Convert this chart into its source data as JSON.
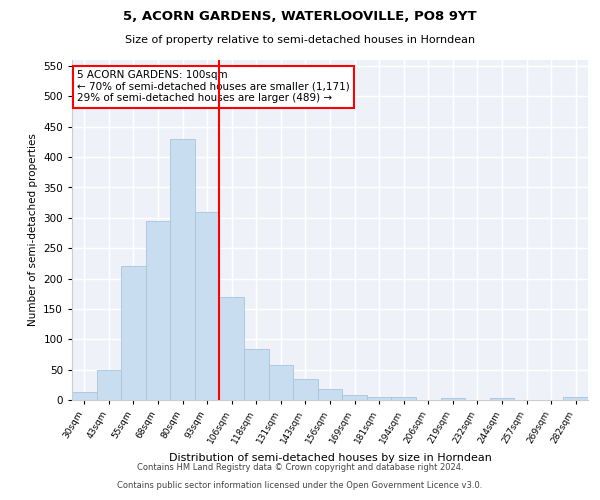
{
  "title1": "5, ACORN GARDENS, WATERLOOVILLE, PO8 9YT",
  "title2": "Size of property relative to semi-detached houses in Horndean",
  "xlabel": "Distribution of semi-detached houses by size in Horndean",
  "ylabel": "Number of semi-detached properties",
  "categories": [
    "30sqm",
    "43sqm",
    "55sqm",
    "68sqm",
    "80sqm",
    "93sqm",
    "106sqm",
    "118sqm",
    "131sqm",
    "143sqm",
    "156sqm",
    "169sqm",
    "181sqm",
    "194sqm",
    "206sqm",
    "219sqm",
    "232sqm",
    "244sqm",
    "257sqm",
    "269sqm",
    "282sqm"
  ],
  "values": [
    13,
    49,
    220,
    295,
    430,
    310,
    170,
    84,
    57,
    35,
    18,
    8,
    5,
    5,
    0,
    4,
    0,
    3,
    0,
    0,
    5
  ],
  "bar_color": "#c8ddf0",
  "bar_edge_color": "#a8c4e0",
  "vline_x_index": 6,
  "vline_color": "red",
  "annotation_text": "5 ACORN GARDENS: 100sqm\n← 70% of semi-detached houses are smaller (1,171)\n29% of semi-detached houses are larger (489) →",
  "annotation_box_color": "white",
  "annotation_box_edge": "red",
  "ylim": [
    0,
    560
  ],
  "yticks": [
    0,
    50,
    100,
    150,
    200,
    250,
    300,
    350,
    400,
    450,
    500,
    550
  ],
  "footer1": "Contains HM Land Registry data © Crown copyright and database right 2024.",
  "footer2": "Contains public sector information licensed under the Open Government Licence v3.0.",
  "bg_color": "#ffffff",
  "plot_bg_color": "#eef2f8"
}
